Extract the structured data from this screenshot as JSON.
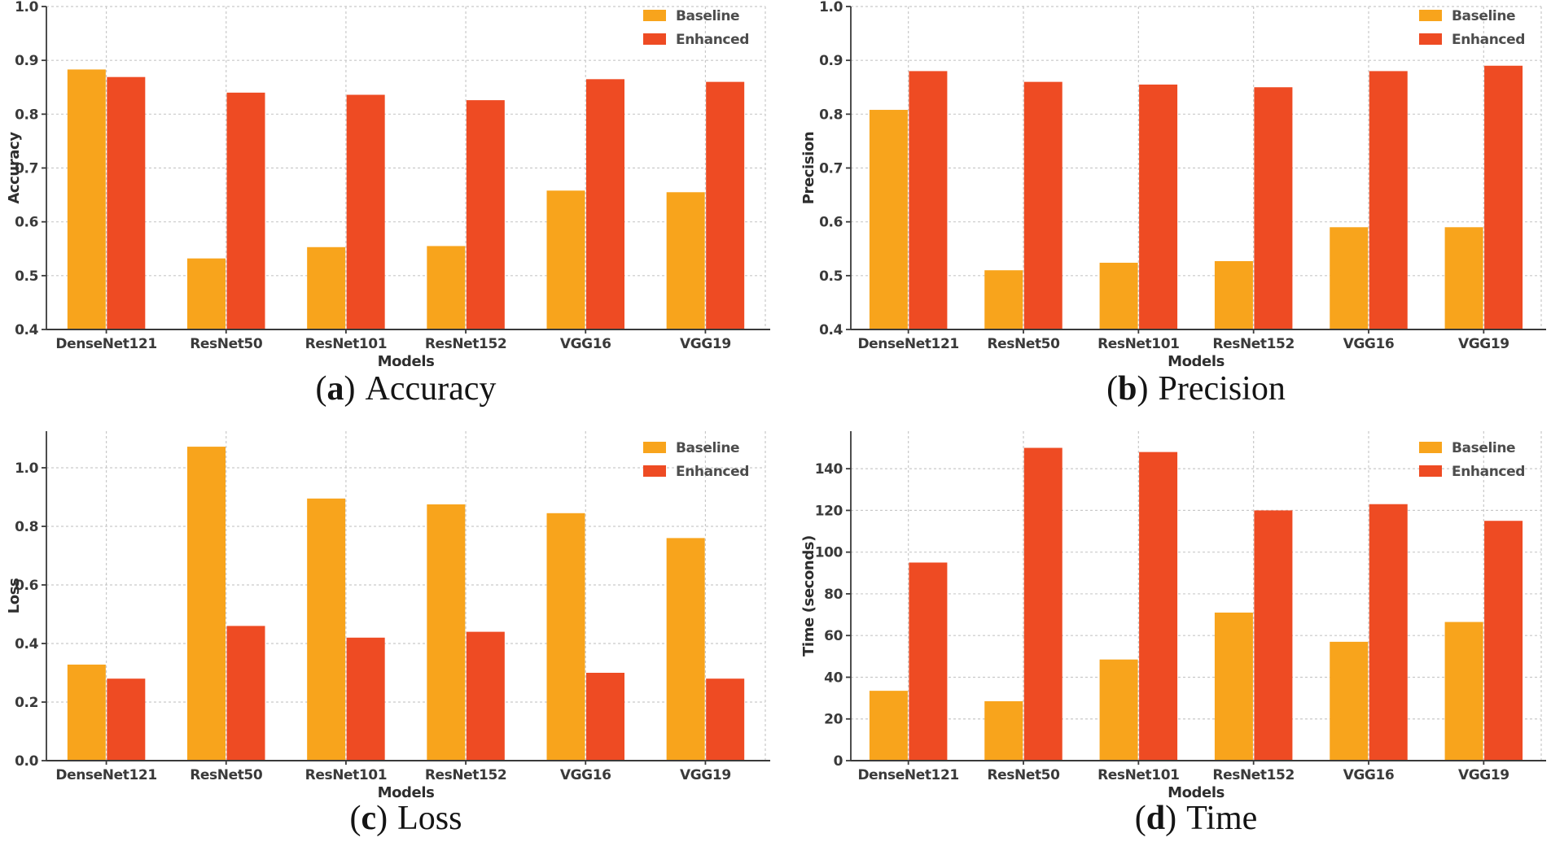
{
  "figure": {
    "background": "#ffffff",
    "grid_color": "#c9c9c9",
    "spine_color": "#3a3a3a",
    "tick_text_color": "#3a3a3a",
    "axis_label_color": "#2e2e2e",
    "legend_text_color": "#4d4d4d",
    "legend_labels": [
      "Baseline",
      "Enhanced"
    ],
    "series_colors": {
      "baseline": "#F8A41C",
      "enhanced": "#EE4B23"
    }
  },
  "chart_data": [
    {
      "id": "accuracy",
      "type": "bar",
      "caption": {
        "open": "(",
        "letter": "a",
        "close": ")",
        "title": "Accuracy"
      },
      "xlabel": "Models",
      "ylabel": "Accuracy",
      "categories": [
        "DenseNet121",
        "ResNet50",
        "ResNet101",
        "ResNet152",
        "VGG16",
        "VGG19"
      ],
      "series": [
        {
          "name": "Baseline",
          "color": "#F8A41C",
          "values": [
            0.883,
            0.532,
            0.553,
            0.555,
            0.658,
            0.655
          ]
        },
        {
          "name": "Enhanced",
          "color": "#EE4B23",
          "values": [
            0.869,
            0.84,
            0.836,
            0.826,
            0.865,
            0.86
          ]
        }
      ],
      "ylim": [
        0.4,
        1.0
      ],
      "yticks": [
        0.4,
        0.5,
        0.6,
        0.7,
        0.8,
        0.9,
        1.0
      ],
      "ytick_labels": [
        "0.4",
        "0.5",
        "0.6",
        "0.7",
        "0.8",
        "0.9",
        "1.0"
      ],
      "grid": true,
      "legend_position": "top-right"
    },
    {
      "id": "precision",
      "type": "bar",
      "caption": {
        "open": "(",
        "letter": "b",
        "close": ")",
        "title": "Precision"
      },
      "xlabel": "Models",
      "ylabel": "Precision",
      "categories": [
        "DenseNet121",
        "ResNet50",
        "ResNet101",
        "ResNet152",
        "VGG16",
        "VGG19"
      ],
      "series": [
        {
          "name": "Baseline",
          "color": "#F8A41C",
          "values": [
            0.808,
            0.51,
            0.524,
            0.527,
            0.59,
            0.59
          ]
        },
        {
          "name": "Enhanced",
          "color": "#EE4B23",
          "values": [
            0.88,
            0.86,
            0.855,
            0.85,
            0.88,
            0.89
          ]
        }
      ],
      "ylim": [
        0.4,
        1.0
      ],
      "yticks": [
        0.4,
        0.5,
        0.6,
        0.7,
        0.8,
        0.9,
        1.0
      ],
      "ytick_labels": [
        "0.4",
        "0.5",
        "0.6",
        "0.7",
        "0.8",
        "0.9",
        "1.0"
      ],
      "grid": true,
      "legend_position": "top-right"
    },
    {
      "id": "loss",
      "type": "bar",
      "caption": {
        "open": "(",
        "letter": "c",
        "close": ")",
        "title": "Loss"
      },
      "xlabel": "Models",
      "ylabel": "Loss",
      "categories": [
        "DenseNet121",
        "ResNet50",
        "ResNet101",
        "ResNet152",
        "VGG16",
        "VGG19"
      ],
      "series": [
        {
          "name": "Baseline",
          "color": "#F8A41C",
          "values": [
            0.328,
            1.072,
            0.895,
            0.875,
            0.845,
            0.76
          ]
        },
        {
          "name": "Enhanced",
          "color": "#EE4B23",
          "values": [
            0.28,
            0.46,
            0.42,
            0.44,
            0.3,
            0.28
          ]
        }
      ],
      "ylim": [
        0.0,
        1.125
      ],
      "yticks": [
        0.0,
        0.2,
        0.4,
        0.6,
        0.8,
        1.0
      ],
      "ytick_labels": [
        "0.0",
        "0.2",
        "0.4",
        "0.6",
        "0.8",
        "1.0"
      ],
      "grid": true,
      "legend_position": "top-right"
    },
    {
      "id": "time",
      "type": "bar",
      "caption": {
        "open": "(",
        "letter": "d",
        "close": ")",
        "title": "Time"
      },
      "xlabel": "Models",
      "ylabel": "Time (seconds)",
      "categories": [
        "DenseNet121",
        "ResNet50",
        "ResNet101",
        "ResNet152",
        "VGG16",
        "VGG19"
      ],
      "series": [
        {
          "name": "Baseline",
          "color": "#F8A41C",
          "values": [
            33.5,
            28.5,
            48.5,
            71,
            57,
            66.5
          ]
        },
        {
          "name": "Enhanced",
          "color": "#EE4B23",
          "values": [
            95,
            150,
            148,
            120,
            123,
            115
          ]
        }
      ],
      "ylim": [
        0,
        158
      ],
      "yticks": [
        0,
        20,
        40,
        60,
        80,
        100,
        120,
        140
      ],
      "ytick_labels": [
        "0",
        "20",
        "40",
        "60",
        "80",
        "100",
        "120",
        "140"
      ],
      "grid": true,
      "legend_position": "top-right"
    }
  ]
}
